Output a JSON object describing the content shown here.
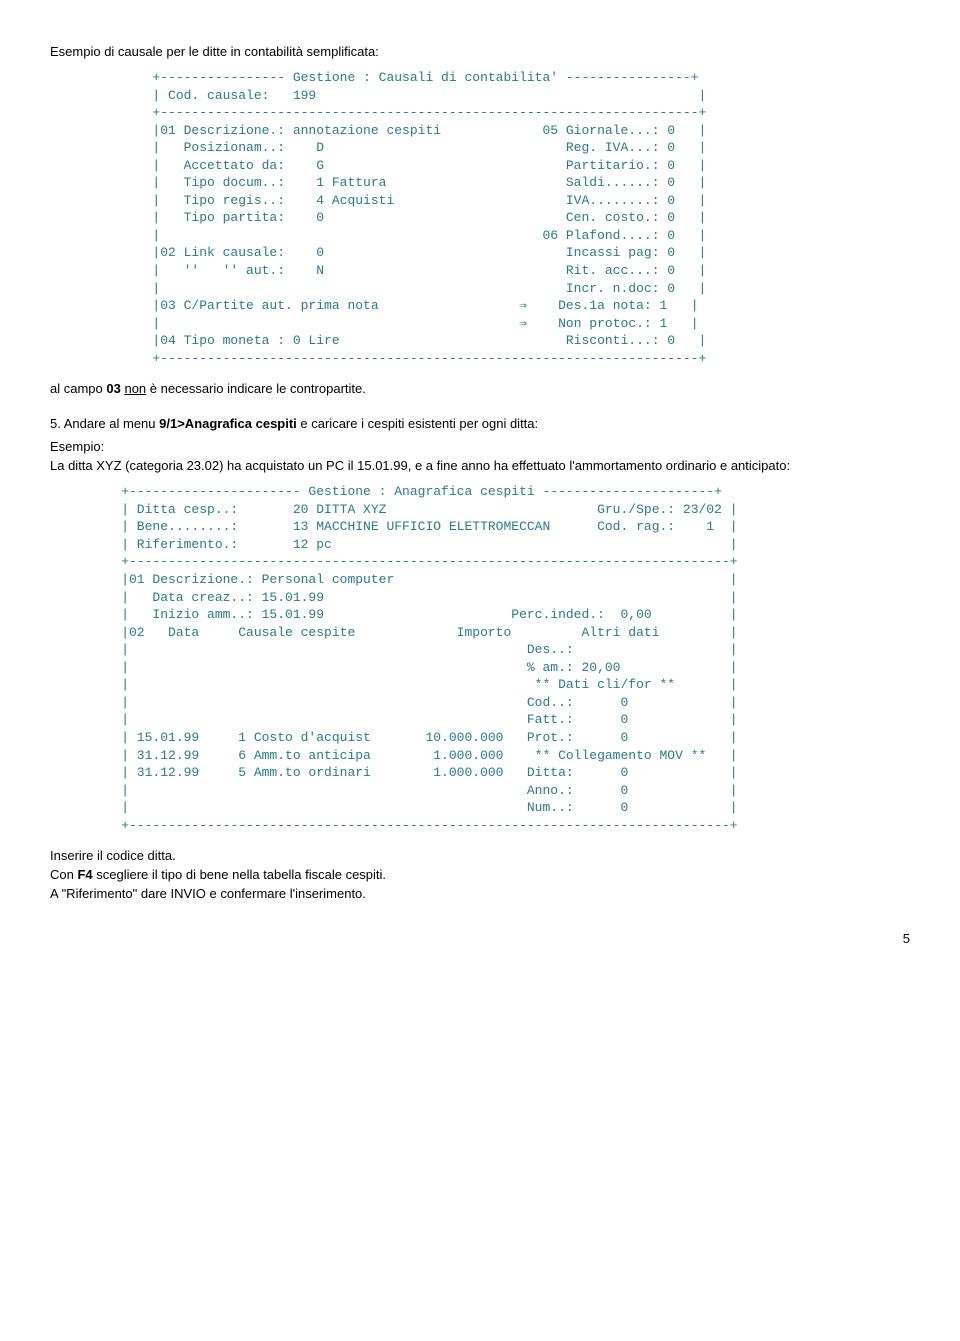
{
  "intro1": "Esempio di causale per le ditte in contabilità semplificata:",
  "block1": "        +---------------- Gestione : Causali di contabilita' ----------------+\n        | Cod. causale:   199                                                 |\n        +---------------------------------------------------------------------+\n        |01 Descrizione.: annotazione cespiti             05 Giornale...: 0   |\n        |   Posizionam..:    D                               Reg. IVA...: 0   |\n        |   Accettato da:    G                               Partitario.: 0   |\n        |   Tipo docum..:    1 Fattura                       Saldi......: 0   |\n        |   Tipo regis..:    4 Acquisti                      IVA........: 0   |\n        |   Tipo partita:    0                               Cen. costo.: 0   |\n        |                                                 06 Plafond....: 0   |\n        |02 Link causale:    0                               Incassi pag: 0   |\n        |   ''   '' aut.:    N                               Rit. acc...: 0   |\n        |                                                    Incr. n.doc: 0   |\n        |03 C/Partite aut. prima nota                  ⇒    Des.1a nota: 1   |\n        |                                              ⇒    Non protoc.: 1   |\n        |04 Tipo moneta : 0 Lire                             Risconti...: 0   |\n        +---------------------------------------------------------------------+",
  "afterBlock1_a": "al campo ",
  "afterBlock1_b": "03",
  "afterBlock1_c": " ",
  "afterBlock1_d": "non",
  "afterBlock1_e": " è necessario indicare le contropartite.",
  "item5_a": "5.   Andare al menu ",
  "item5_b": "9/1>Anagrafica cespiti",
  "item5_c": " e caricare i cespiti esistenti per ogni ditta:",
  "example1": "Esempio:",
  "example2_a": "La ditta XYZ (categoria 23.02) ha acquistato un PC il 15.01.99, e a fine anno ha effettuato l'ammortamento ordinario e anticipato:",
  "block2": "    +---------------------- Gestione : Anagrafica cespiti ----------------------+\n    | Ditta cesp..:       20 DITTA XYZ                           Gru./Spe.: 23/02 |\n    | Bene........:       13 MACCHINE UFFICIO ELETTROMECCAN      Cod. rag.:    1  |\n    | Riferimento.:       12 pc                                                   |\n    +-----------------------------------------------------------------------------+\n    |01 Descrizione.: Personal computer                                           |\n    |   Data creaz..: 15.01.99                                                    |\n    |   Inizio amm..: 15.01.99                        Perc.inded.:  0,00          |\n    |02   Data     Causale cespite             Importo         Altri dati         |\n    |                                                   Des..:                    |\n    |                                                   % am.: 20,00              |\n    |                                                    ** Dati cli/for **       |\n    |                                                   Cod..:      0             |\n    |                                                   Fatt.:      0             |\n    | 15.01.99     1 Costo d'acquist       10.000.000   Prot.:      0             |\n    | 31.12.99     6 Amm.to anticipa        1.000.000    ** Collegamento MOV **   |\n    | 31.12.99     5 Amm.to ordinari        1.000.000   Ditta:      0             |\n    |                                                   Anno.:      0             |\n    |                                                   Num..:      0             |\n    +-----------------------------------------------------------------------------+",
  "footer1": "Inserire il codice ditta.",
  "footer2_a": "Con ",
  "footer2_b": "F4",
  "footer2_c": " scegliere il tipo di bene nella tabella fiscale cespiti.",
  "footer3": "A \"Riferimento\" dare INVIO e confermare l'inserimento.",
  "pageNum": "5"
}
